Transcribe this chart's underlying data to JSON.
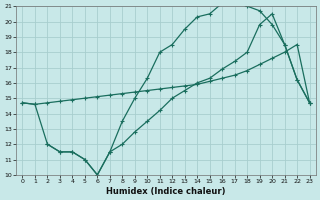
{
  "background_color": "#c8e8e8",
  "grid_color": "#a8cece",
  "line_color": "#1a6e5e",
  "xlabel": "Humidex (Indice chaleur)",
  "xlim": [
    -0.5,
    23.5
  ],
  "ylim": [
    10,
    21
  ],
  "xticks": [
    0,
    1,
    2,
    3,
    4,
    5,
    6,
    7,
    8,
    9,
    10,
    11,
    12,
    13,
    14,
    15,
    16,
    17,
    18,
    19,
    20,
    21,
    22,
    23
  ],
  "yticks": [
    10,
    11,
    12,
    13,
    14,
    15,
    16,
    17,
    18,
    19,
    20,
    21
  ],
  "line1_x": [
    0,
    1,
    2,
    3,
    4,
    5,
    6,
    7,
    8,
    9,
    10,
    11,
    12,
    13,
    14,
    15,
    16,
    17,
    18,
    19,
    20,
    21,
    22,
    23
  ],
  "line1_y": [
    14.7,
    14.6,
    14.7,
    14.8,
    14.9,
    15.0,
    15.1,
    15.2,
    15.3,
    15.4,
    15.5,
    15.6,
    15.7,
    15.8,
    15.9,
    16.1,
    16.3,
    16.5,
    16.8,
    17.2,
    17.6,
    18.0,
    18.5,
    14.7
  ],
  "line2_x": [
    2,
    3,
    4,
    5,
    6,
    7,
    8,
    9,
    10,
    11,
    12,
    13,
    14,
    15,
    16,
    17,
    18,
    19,
    20,
    21,
    22,
    23
  ],
  "line2_y": [
    12.0,
    11.5,
    11.5,
    11.0,
    10.0,
    11.5,
    12.0,
    12.8,
    13.5,
    14.2,
    15.0,
    15.5,
    16.0,
    16.3,
    16.9,
    17.4,
    18.0,
    19.8,
    20.5,
    18.5,
    16.2,
    14.7
  ],
  "line3_x": [
    0,
    1,
    2,
    3,
    4,
    5,
    6,
    7,
    8,
    9,
    10,
    11,
    12,
    13,
    14,
    15,
    16,
    17,
    18,
    19,
    20,
    21,
    22,
    23
  ],
  "line3_y": [
    14.7,
    14.6,
    12.0,
    11.5,
    11.5,
    11.0,
    10.0,
    11.5,
    13.5,
    15.0,
    16.3,
    18.0,
    18.5,
    19.5,
    20.3,
    20.5,
    21.2,
    21.2,
    21.0,
    20.7,
    19.8,
    18.5,
    16.2,
    14.7
  ]
}
